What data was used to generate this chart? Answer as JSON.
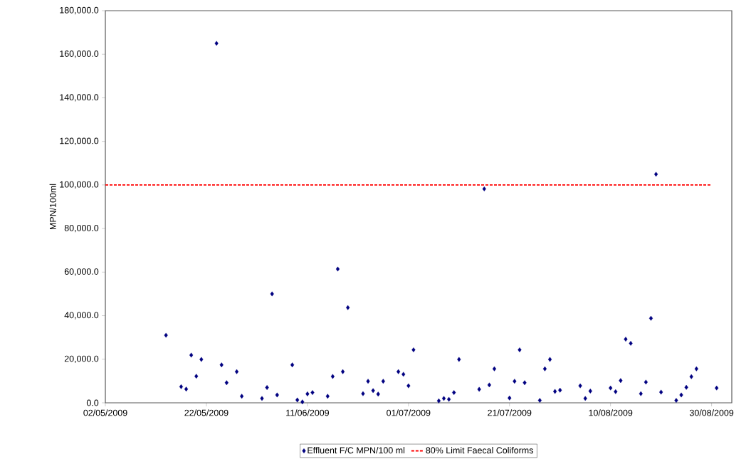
{
  "chart_data": {
    "type": "scatter",
    "ylabel": "MPN/100ml",
    "xlim": [
      "2009-05-02",
      "2009-09-03"
    ],
    "xticks": [
      {
        "value": "2009-05-02",
        "label": "02/05/2009"
      },
      {
        "value": "2009-05-22",
        "label": "22/05/2009"
      },
      {
        "value": "2009-06-11",
        "label": "11/06/2009"
      },
      {
        "value": "2009-07-01",
        "label": "01/07/2009"
      },
      {
        "value": "2009-07-21",
        "label": "21/07/2009"
      },
      {
        "value": "2009-08-10",
        "label": "10/08/2009"
      },
      {
        "value": "2009-08-30",
        "label": "30/08/2009"
      }
    ],
    "ylim": [
      0,
      180000
    ],
    "yticks": [
      {
        "value": 0,
        "label": "0.0"
      },
      {
        "value": 20000,
        "label": "20,000.0"
      },
      {
        "value": 40000,
        "label": "40,000.0"
      },
      {
        "value": 60000,
        "label": "60,000.0"
      },
      {
        "value": 80000,
        "label": "80,000.0"
      },
      {
        "value": 100000,
        "label": "100,000.0"
      },
      {
        "value": 120000,
        "label": "120,000.0"
      },
      {
        "value": 140000,
        "label": "140,000.0"
      },
      {
        "value": 160000,
        "label": "160,000.0"
      },
      {
        "value": 180000,
        "label": "180,000.0"
      }
    ],
    "grid": false,
    "legend": "bottom",
    "series": [
      {
        "name": "Effluent F/C MPN/100 ml",
        "color": "#000080",
        "marker": "diamond",
        "x": [
          "2009-05-14",
          "2009-05-17",
          "2009-05-18",
          "2009-05-19",
          "2009-05-20",
          "2009-05-21",
          "2009-05-24",
          "2009-05-25",
          "2009-05-26",
          "2009-05-28",
          "2009-05-29",
          "2009-06-02",
          "2009-06-03",
          "2009-06-04",
          "2009-06-05",
          "2009-06-08",
          "2009-06-09",
          "2009-06-10",
          "2009-06-11",
          "2009-06-12",
          "2009-06-15",
          "2009-06-16",
          "2009-06-17",
          "2009-06-18",
          "2009-06-19",
          "2009-06-22",
          "2009-06-23",
          "2009-06-24",
          "2009-06-25",
          "2009-06-26",
          "2009-06-29",
          "2009-06-30",
          "2009-07-01",
          "2009-07-02",
          "2009-07-07",
          "2009-07-08",
          "2009-07-09",
          "2009-07-10",
          "2009-07-11",
          "2009-07-15",
          "2009-07-16",
          "2009-07-17",
          "2009-07-18",
          "2009-07-21",
          "2009-07-22",
          "2009-07-23",
          "2009-07-24",
          "2009-07-27",
          "2009-07-28",
          "2009-07-29",
          "2009-07-30",
          "2009-07-31",
          "2009-08-04",
          "2009-08-05",
          "2009-08-06",
          "2009-08-10",
          "2009-08-11",
          "2009-08-12",
          "2009-08-13",
          "2009-08-14",
          "2009-08-16",
          "2009-08-17",
          "2009-08-18",
          "2009-08-19",
          "2009-08-20",
          "2009-08-23",
          "2009-08-24",
          "2009-08-25",
          "2009-08-26",
          "2009-08-27",
          "2009-08-31"
        ],
        "values": [
          31000,
          7400,
          6300,
          21900,
          12200,
          19900,
          165000,
          17400,
          9200,
          14300,
          3000,
          2000,
          7000,
          50000,
          3600,
          17400,
          1300,
          400,
          4100,
          4700,
          3000,
          12100,
          61400,
          14300,
          43700,
          4200,
          9900,
          5600,
          4000,
          9900,
          14300,
          13100,
          7800,
          24300,
          900,
          2000,
          1600,
          4700,
          19900,
          6200,
          98200,
          8200,
          15600,
          2200,
          9900,
          24300,
          9200,
          1100,
          15600,
          19900,
          5200,
          5800,
          7800,
          2000,
          5400,
          6800,
          5100,
          10200,
          29200,
          27300,
          4200,
          9500,
          38800,
          104900,
          4900,
          1100,
          3600,
          7100,
          12000,
          15600,
          6800
        ]
      },
      {
        "name": "80% Limit Faecal Coliforms",
        "type": "line",
        "color": "#ff0000",
        "marker": "none",
        "line_style": "dashed",
        "x": [
          "2009-05-02",
          "2009-08-30"
        ],
        "values": [
          100000,
          100000
        ]
      }
    ]
  }
}
